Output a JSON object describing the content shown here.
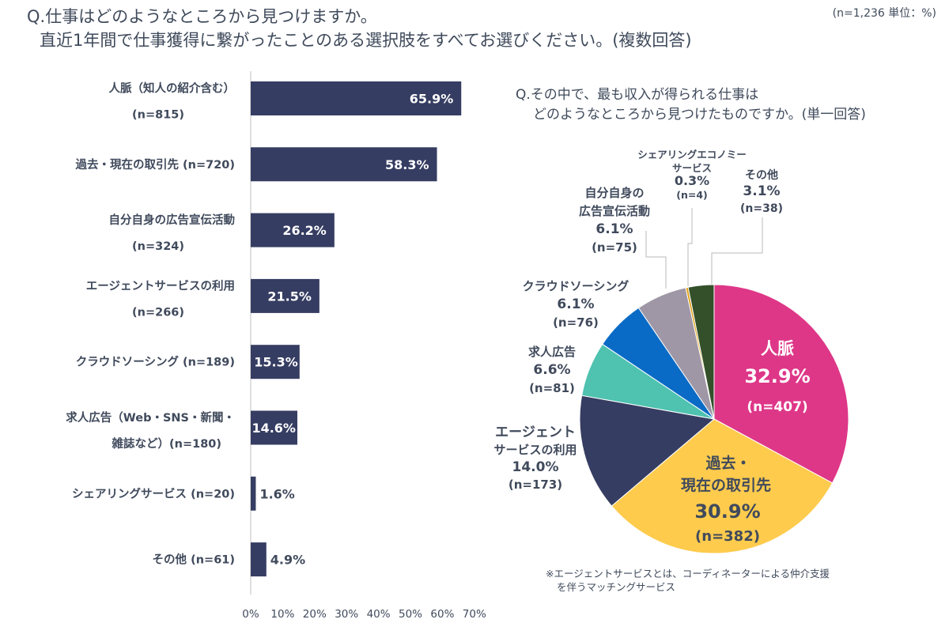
{
  "question1": {
    "line1": "Q.仕事はどのようなところから見つけますか。",
    "line2": "直近1年間で仕事獲得に繋がったことのある選択肢をすべてお選びください。(複数回答)"
  },
  "meta": "(n=1,236 単位：%)",
  "question2": {
    "line1": "Q.その中で、最も収入が得られる仕事は",
    "line2": "どのようなところから見つけたものですか。(単一回答)"
  },
  "footnote": {
    "line1": "※エージェントサービスとは、コーディネーターによる仲介支援",
    "line2": "を伴うマッチングサービス"
  },
  "colors": {
    "bar": "#363d62",
    "axis": "#bfbfbf",
    "text": "#404a5c",
    "pie": [
      "#de3788",
      "#fecb4d",
      "#363d62",
      "#4fc2b0",
      "#0a6bc6",
      "#9f97a6",
      "#e0a21a",
      "#34502a"
    ]
  },
  "chart_data": [
    {
      "type": "bar",
      "orientation": "horizontal",
      "categories": [
        {
          "lines": [
            "人脈（知人の紹介含む）",
            "(n=815)"
          ]
        },
        {
          "lines": [
            "過去・現在の取引先 (n=720)"
          ]
        },
        {
          "lines": [
            "自分自身の広告宣伝活動",
            "(n=324)"
          ]
        },
        {
          "lines": [
            "エージェントサービスの利用",
            "(n=266)"
          ]
        },
        {
          "lines": [
            "クラウドソーシング (n=189)"
          ]
        },
        {
          "lines": [
            "求人広告（Web・SNS・新聞・",
            "雑誌など）(n=180)"
          ]
        },
        {
          "lines": [
            "シェアリングサービス (n=20)"
          ]
        },
        {
          "lines": [
            "その他 (n=61)"
          ]
        }
      ],
      "values": [
        65.9,
        58.3,
        26.2,
        21.5,
        15.3,
        14.6,
        1.6,
        4.9
      ],
      "value_labels": [
        "65.9%",
        "58.3%",
        "26.2%",
        "21.5%",
        "15.3%",
        "14.6%",
        "1.6%",
        "4.9%"
      ],
      "xlim": [
        0,
        70
      ],
      "xticks": [
        0,
        10,
        20,
        30,
        40,
        50,
        60,
        70
      ],
      "xtick_labels": [
        "0%",
        "10%",
        "20%",
        "30%",
        "40%",
        "50%",
        "60%",
        "70%"
      ]
    },
    {
      "type": "pie",
      "slices": [
        {
          "label": "人脈",
          "value": 32.9,
          "value_label": "32.9%",
          "n": "(n=407)"
        },
        {
          "label": "過去・現在の取引先",
          "label_lines": [
            "過去・",
            "現在の取引先"
          ],
          "value": 30.9,
          "value_label": "30.9%",
          "n": "(n=382)"
        },
        {
          "label": "エージェントサービスの利用",
          "label_lines": [
            "エージェント",
            "サービスの利用"
          ],
          "value": 14.0,
          "value_label": "14.0%",
          "n": "(n=173)"
        },
        {
          "label": "求人広告",
          "label_lines": [
            "求人広告"
          ],
          "value": 6.6,
          "value_label": "6.6%",
          "n": "(n=81)"
        },
        {
          "label": "クラウドソーシング",
          "label_lines": [
            "クラウドソーシング"
          ],
          "value": 6.1,
          "value_label": "6.1%",
          "n": "(n=76)"
        },
        {
          "label": "自分自身の広告宣伝活動",
          "label_lines": [
            "自分自身の",
            "広告宣伝活動"
          ],
          "value": 6.1,
          "value_label": "6.1%",
          "n": "(n=75)"
        },
        {
          "label": "シェアリングエコノミーサービス",
          "label_lines": [
            "シェアリングエコノミー",
            "サービス"
          ],
          "value": 0.3,
          "value_label": "0.3%",
          "n": "(n=4)"
        },
        {
          "label": "その他",
          "label_lines": [
            "その他"
          ],
          "value": 3.1,
          "value_label": "3.1%",
          "n": "(n=38)"
        }
      ]
    }
  ]
}
